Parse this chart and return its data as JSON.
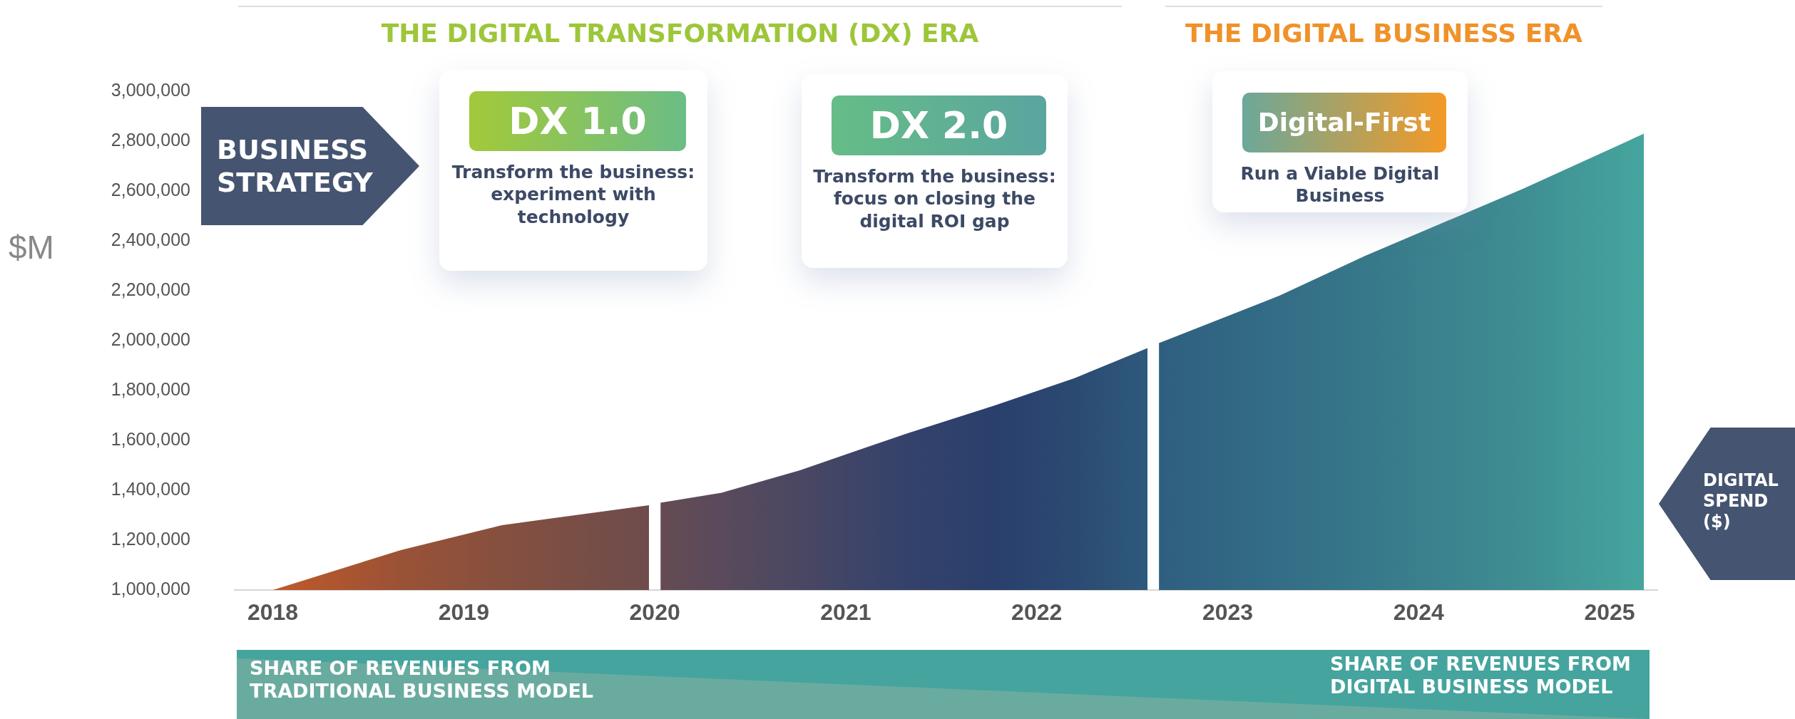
{
  "chart_data": {
    "type": "area",
    "ylabel": "$M",
    "x": [
      2018,
      2018.67,
      2019.2,
      2019.97,
      2020,
      2020.03,
      2020.35,
      2020.76,
      2021.1,
      2021.33,
      2021.78,
      2022.2,
      2022.58,
      2022.61,
      2022.64,
      2023.27,
      2023.72,
      2024.55,
      2025.18
    ],
    "series": [
      {
        "values": [
          1000000,
          1160000,
          1260000,
          1340000,
          null,
          1350000,
          1390000,
          1480000,
          1570000,
          1630000,
          1740000,
          1850000,
          1970000,
          null,
          1990000,
          2180000,
          2340000,
          2610000,
          2830000
        ],
        "colors": [
          "#c0592a",
          "#9a5236",
          "#85503f",
          "#6e4c4c",
          null,
          "#654b52",
          "#5a4a5c",
          "#4a4762",
          "#3c4468",
          "#34426b",
          "#2a3f6c",
          "#2b4a72",
          "#2e5a7c",
          null,
          "#2f5f80",
          "#336d86",
          "#37788a",
          "#3f8e92",
          "#46a59e"
        ]
      }
    ],
    "xlim": [
      2017.8,
      2025.25
    ],
    "xticks": [
      {
        "value": 2018,
        "label": "2018"
      },
      {
        "value": 2019,
        "label": "2019"
      },
      {
        "value": 2020,
        "label": "2020"
      },
      {
        "value": 2021,
        "label": "2021"
      },
      {
        "value": 2022,
        "label": "2022"
      },
      {
        "value": 2023,
        "label": "2023"
      },
      {
        "value": 2024,
        "label": "2024"
      },
      {
        "value": 2025,
        "label": "2025"
      }
    ],
    "ylim": [
      1000000,
      3000000
    ],
    "yticks": [
      {
        "value": 1000000,
        "label": "1,000,000"
      },
      {
        "value": 1200000,
        "label": "1,200,000"
      },
      {
        "value": 1400000,
        "label": "1,400,000"
      },
      {
        "value": 1600000,
        "label": "1,600,000"
      },
      {
        "value": 1800000,
        "label": "1,800,000"
      },
      {
        "value": 2000000,
        "label": "2,000,000"
      },
      {
        "value": 2200000,
        "label": "2,200,000"
      },
      {
        "value": 2400000,
        "label": "2,400,000"
      },
      {
        "value": 2600000,
        "label": "2,600,000"
      },
      {
        "value": 2800000,
        "label": "2,800,000"
      },
      {
        "value": 3000000,
        "label": "3,000,000"
      }
    ],
    "grid": false,
    "legend": false,
    "annotations": [
      "THE DIGITAL TRANSFORMATION (DX) ERA",
      "THE DIGITAL BUSINESS ERA",
      "BUSINESS STRATEGY",
      "DX 1.0",
      "Transform the business: experiment with technology",
      "DX 2.0",
      "Transform the business: focus on closing the digital ROI gap",
      "Digital-First",
      "Run a Viable Digital Business",
      "DIGITAL SPEND ($)",
      "SHARE OF REVENUES FROM TRADITIONAL BUSINESS MODEL",
      "SHARE OF REVENUES FROM DIGITAL BUSINESS MODEL"
    ]
  }
}
